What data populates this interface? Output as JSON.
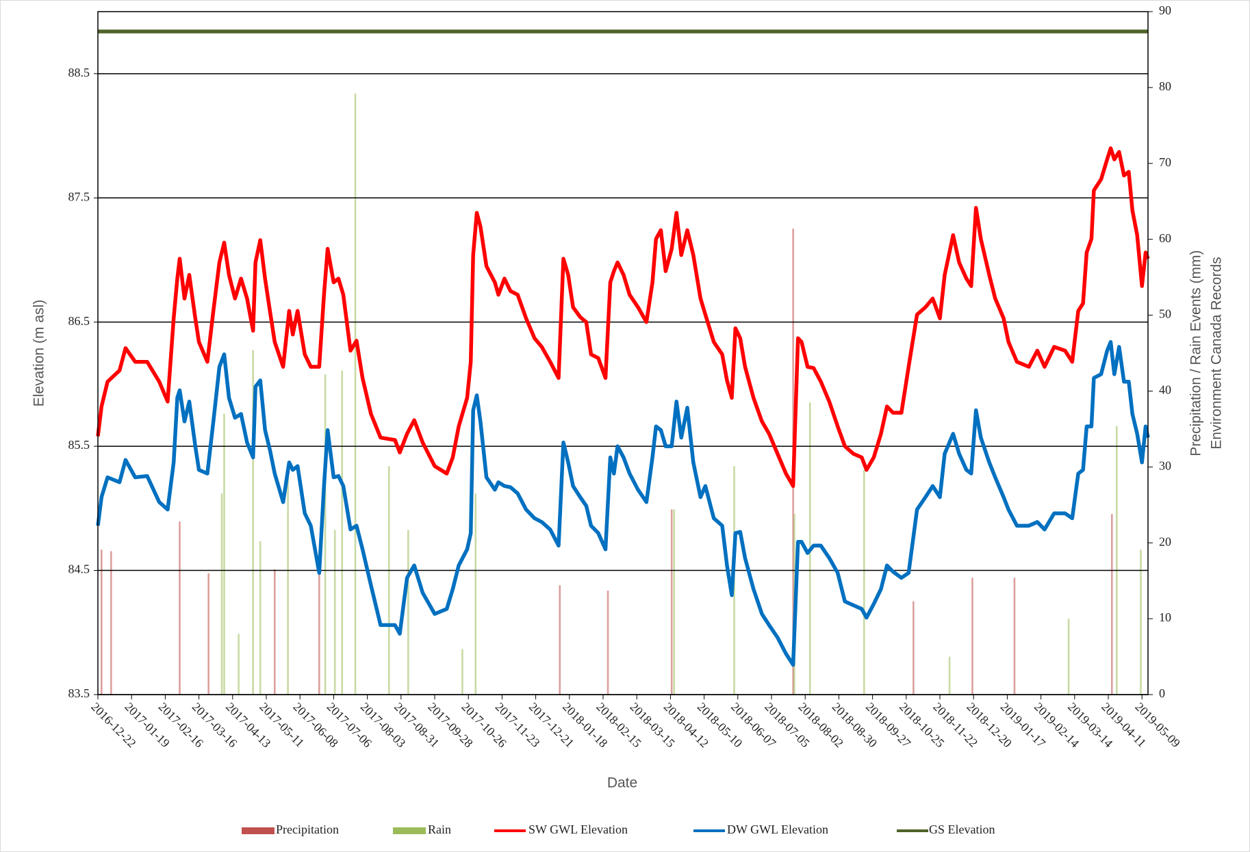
{
  "chart_data": {
    "type": "line",
    "x_label": "Date",
    "y_label": "Elevation (m asl)",
    "y2_label": [
      "Precipitation / Rain Events (mm)",
      "Environment Canada Records"
    ],
    "xlim": [
      "2016-12-22",
      "2019-05-14"
    ],
    "xticks": [
      "2016-12-22",
      "2017-01-19",
      "2017-02-16",
      "2017-03-16",
      "2017-04-13",
      "2017-05-11",
      "2017-06-08",
      "2017-07-06",
      "2017-08-03",
      "2017-08-31",
      "2017-09-28",
      "2017-10-26",
      "2017-11-23",
      "2017-12-21",
      "2018-01-18",
      "2018-02-15",
      "2018-03-15",
      "2018-04-12",
      "2018-05-10",
      "2018-06-07",
      "2018-07-05",
      "2018-08-02",
      "2018-08-30",
      "2018-09-27",
      "2018-10-25",
      "2018-11-22",
      "2018-12-20",
      "2019-01-17",
      "2019-02-14",
      "2019-03-14",
      "2019-04-11",
      "2019-05-09"
    ],
    "ylim": [
      83.5,
      89
    ],
    "yticks": [
      83.5,
      84.5,
      85.5,
      86.5,
      87.5,
      88.5
    ],
    "y2lim": [
      0,
      90
    ],
    "y2ticks": [
      0,
      10,
      20,
      30,
      40,
      50,
      60,
      70,
      80,
      90
    ],
    "grid": true,
    "legend": "bottom",
    "x": [
      "2016-12-22",
      "2016-12-25",
      "2016-12-30",
      "2017-01-09",
      "2017-01-14",
      "2017-01-22",
      "2017-02-01",
      "2017-02-11",
      "2017-02-18",
      "2017-02-23",
      "2017-02-26",
      "2017-02-28",
      "2017-03-04",
      "2017-03-08",
      "2017-03-13",
      "2017-03-16",
      "2017-03-23",
      "2017-03-28",
      "2017-04-02",
      "2017-04-06",
      "2017-04-10",
      "2017-04-15",
      "2017-04-20",
      "2017-04-25",
      "2017-04-30",
      "2017-05-02",
      "2017-05-06",
      "2017-05-10",
      "2017-05-14",
      "2017-05-18",
      "2017-05-25",
      "2017-05-30",
      "2017-06-02",
      "2017-06-06",
      "2017-06-12",
      "2017-06-17",
      "2017-06-24",
      "2017-06-28",
      "2017-07-01",
      "2017-07-06",
      "2017-07-10",
      "2017-07-14",
      "2017-07-20",
      "2017-07-25",
      "2017-07-30",
      "2017-08-06",
      "2017-08-14",
      "2017-08-26",
      "2017-08-30",
      "2017-09-05",
      "2017-09-11",
      "2017-09-18",
      "2017-09-28",
      "2017-10-08",
      "2017-10-13",
      "2017-10-18",
      "2017-10-25",
      "2017-10-28",
      "2017-10-30",
      "2017-11-02",
      "2017-11-05",
      "2017-11-10",
      "2017-11-17",
      "2017-11-20",
      "2017-11-25",
      "2017-11-30",
      "2017-12-06",
      "2017-12-13",
      "2017-12-20",
      "2017-12-26",
      "2018-01-02",
      "2018-01-09",
      "2018-01-13",
      "2018-01-17",
      "2018-01-21",
      "2018-01-27",
      "2018-02-01",
      "2018-02-05",
      "2018-02-11",
      "2018-02-17",
      "2018-02-21",
      "2018-02-24",
      "2018-02-27",
      "2018-03-04",
      "2018-03-09",
      "2018-03-16",
      "2018-03-23",
      "2018-03-28",
      "2018-03-31",
      "2018-04-04",
      "2018-04-08",
      "2018-04-13",
      "2018-04-17",
      "2018-04-21",
      "2018-04-26",
      "2018-05-01",
      "2018-05-07",
      "2018-05-11",
      "2018-05-18",
      "2018-05-25",
      "2018-05-29",
      "2018-06-02",
      "2018-06-05",
      "2018-06-09",
      "2018-06-13",
      "2018-06-20",
      "2018-06-27",
      "2018-07-03",
      "2018-07-10",
      "2018-07-17",
      "2018-07-23",
      "2018-07-27",
      "2018-07-30",
      "2018-08-04",
      "2018-08-09",
      "2018-08-15",
      "2018-08-22",
      "2018-08-29",
      "2018-09-04",
      "2018-09-11",
      "2018-09-18",
      "2018-09-22",
      "2018-09-28",
      "2018-10-04",
      "2018-10-09",
      "2018-10-14",
      "2018-10-21",
      "2018-10-27",
      "2018-11-03",
      "2018-11-10",
      "2018-11-16",
      "2018-11-22",
      "2018-11-26",
      "2018-12-03",
      "2018-12-08",
      "2018-12-14",
      "2018-12-18",
      "2018-12-22",
      "2018-12-26",
      "2019-01-02",
      "2019-01-07",
      "2019-01-14",
      "2019-01-18",
      "2019-01-25",
      "2019-02-04",
      "2019-02-11",
      "2019-02-17",
      "2019-02-25",
      "2019-03-06",
      "2019-03-12",
      "2019-03-17",
      "2019-03-21",
      "2019-03-24",
      "2019-03-28",
      "2019-03-30",
      "2019-04-05",
      "2019-04-10",
      "2019-04-13",
      "2019-04-16",
      "2019-04-20",
      "2019-04-24",
      "2019-04-28",
      "2019-05-01",
      "2019-05-05",
      "2019-05-09",
      "2019-05-12",
      "2019-05-14"
    ],
    "series": [
      {
        "name": "Precipitation",
        "color": "#c0504d",
        "type": "bar",
        "axis": "y2",
        "x": [
          "2016-12-25",
          "2017-01-02",
          "2017-02-28",
          "2017-03-24",
          "2017-05-18",
          "2017-06-24",
          "2018-01-10",
          "2018-02-19",
          "2018-04-13",
          "2018-07-23",
          "2018-10-31",
          "2018-12-19",
          "2019-01-23",
          "2019-04-14"
        ],
        "values": [
          19.1,
          18.9,
          22.8,
          16.0,
          16.5,
          18.6,
          14.4,
          13.7,
          24.4,
          61.4,
          12.3,
          15.4,
          15.4,
          23.8
        ]
      },
      {
        "name": "Rain",
        "color": "#9bbb59",
        "type": "bar",
        "axis": "y2",
        "x": [
          "2017-04-04",
          "2017-04-06",
          "2017-04-18",
          "2017-04-30",
          "2017-05-06",
          "2017-05-29",
          "2017-06-29",
          "2017-07-07",
          "2017-07-13",
          "2017-07-24",
          "2017-08-21",
          "2017-09-06",
          "2017-10-21",
          "2017-11-01",
          "2018-04-15",
          "2018-06-04",
          "2018-07-24",
          "2018-08-06",
          "2018-09-20",
          "2018-11-30",
          "2019-03-09",
          "2019-04-18",
          "2019-05-08"
        ],
        "values": [
          26.5,
          37.0,
          8,
          45.4,
          20.2,
          29.6,
          42.2,
          21.7,
          42.7,
          79.2,
          30.1,
          21.7,
          6,
          26.5,
          24.4,
          30.1,
          23.8,
          38.5,
          29.6,
          5,
          10,
          35.4,
          19.1
        ]
      },
      {
        "name": "SW GWL Elevation",
        "color": "#ff0000",
        "type": "line",
        "values": [
          85.58,
          85.82,
          86.02,
          86.11,
          86.29,
          86.18,
          86.18,
          86.02,
          85.86,
          86.53,
          86.85,
          87.01,
          86.69,
          86.88,
          86.53,
          86.34,
          86.18,
          86.59,
          86.98,
          87.14,
          86.88,
          86.69,
          86.85,
          86.69,
          86.43,
          86.98,
          87.16,
          86.85,
          86.59,
          86.34,
          86.14,
          86.59,
          86.4,
          86.59,
          86.24,
          86.14,
          86.14,
          86.72,
          87.09,
          86.82,
          86.85,
          86.72,
          86.27,
          86.35,
          86.05,
          85.76,
          85.57,
          85.55,
          85.45,
          85.6,
          85.71,
          85.53,
          85.34,
          85.28,
          85.41,
          85.66,
          85.89,
          86.18,
          87.04,
          87.38,
          87.27,
          86.95,
          86.82,
          86.72,
          86.85,
          86.75,
          86.72,
          86.53,
          86.37,
          86.3,
          86.18,
          86.05,
          87.01,
          86.88,
          86.62,
          86.54,
          86.5,
          86.24,
          86.21,
          86.05,
          86.82,
          86.91,
          86.98,
          86.88,
          86.72,
          86.62,
          86.5,
          86.82,
          87.17,
          87.24,
          86.91,
          87.09,
          87.38,
          87.04,
          87.24,
          87.04,
          86.69,
          86.56,
          86.34,
          86.24,
          86.03,
          85.89,
          86.45,
          86.37,
          86.14,
          85.89,
          85.7,
          85.6,
          85.44,
          85.28,
          85.18,
          86.37,
          86.34,
          86.14,
          86.13,
          86.02,
          85.86,
          85.66,
          85.5,
          85.44,
          85.41,
          85.31,
          85.41,
          85.6,
          85.82,
          85.77,
          85.77,
          86.14,
          86.56,
          86.62,
          86.69,
          86.53,
          86.88,
          87.2,
          86.98,
          86.85,
          86.79,
          87.42,
          87.17,
          86.88,
          86.69,
          86.53,
          86.34,
          86.18,
          86.14,
          86.27,
          86.14,
          86.3,
          86.27,
          86.18,
          86.59,
          86.65,
          87.06,
          87.17,
          87.56,
          87.65,
          87.81,
          87.9,
          87.81,
          87.87,
          87.68,
          87.71,
          87.4,
          87.2,
          86.79,
          87.06,
          87.01
        ]
      },
      {
        "name": "DW GWL Elevation",
        "color": "#0070c0",
        "type": "line",
        "values": [
          84.86,
          85.09,
          85.25,
          85.21,
          85.39,
          85.25,
          85.26,
          85.05,
          84.99,
          85.37,
          85.89,
          85.95,
          85.7,
          85.86,
          85.5,
          85.31,
          85.28,
          85.7,
          86.14,
          86.24,
          85.89,
          85.73,
          85.76,
          85.53,
          85.41,
          85.98,
          86.03,
          85.63,
          85.47,
          85.28,
          85.05,
          85.37,
          85.31,
          85.34,
          84.96,
          84.86,
          84.48,
          85.18,
          85.63,
          85.25,
          85.26,
          85.18,
          84.83,
          84.86,
          84.67,
          84.38,
          84.06,
          84.06,
          83.99,
          84.44,
          84.54,
          84.32,
          84.15,
          84.19,
          84.35,
          84.54,
          84.67,
          84.8,
          85.79,
          85.91,
          85.7,
          85.25,
          85.15,
          85.21,
          85.18,
          85.17,
          85.12,
          84.99,
          84.92,
          84.89,
          84.83,
          84.7,
          85.53,
          85.37,
          85.18,
          85.09,
          85.02,
          84.86,
          84.8,
          84.67,
          85.41,
          85.28,
          85.5,
          85.41,
          85.28,
          85.15,
          85.05,
          85.41,
          85.66,
          85.63,
          85.5,
          85.5,
          85.86,
          85.57,
          85.81,
          85.37,
          85.09,
          85.18,
          84.92,
          84.86,
          84.54,
          84.3,
          84.8,
          84.81,
          84.6,
          84.35,
          84.15,
          84.06,
          83.96,
          83.83,
          83.74,
          84.73,
          84.73,
          84.64,
          84.7,
          84.7,
          84.6,
          84.48,
          84.25,
          84.22,
          84.19,
          84.12,
          84.23,
          84.35,
          84.54,
          84.49,
          84.44,
          84.48,
          84.99,
          85.09,
          85.18,
          85.09,
          85.44,
          85.6,
          85.44,
          85.31,
          85.28,
          85.79,
          85.57,
          85.37,
          85.25,
          85.09,
          84.99,
          84.86,
          84.86,
          84.89,
          84.83,
          84.96,
          84.96,
          84.92,
          85.28,
          85.31,
          85.66,
          85.66,
          86.05,
          86.08,
          86.27,
          86.34,
          86.08,
          86.3,
          86.02,
          86.02,
          85.76,
          85.6,
          85.37,
          85.66,
          85.57
        ]
      },
      {
        "name": "GS Elevation",
        "color": "#4f6228",
        "type": "line",
        "x": [
          "2016-12-22",
          "2019-05-14"
        ],
        "values": [
          88.84,
          88.84
        ]
      }
    ]
  }
}
